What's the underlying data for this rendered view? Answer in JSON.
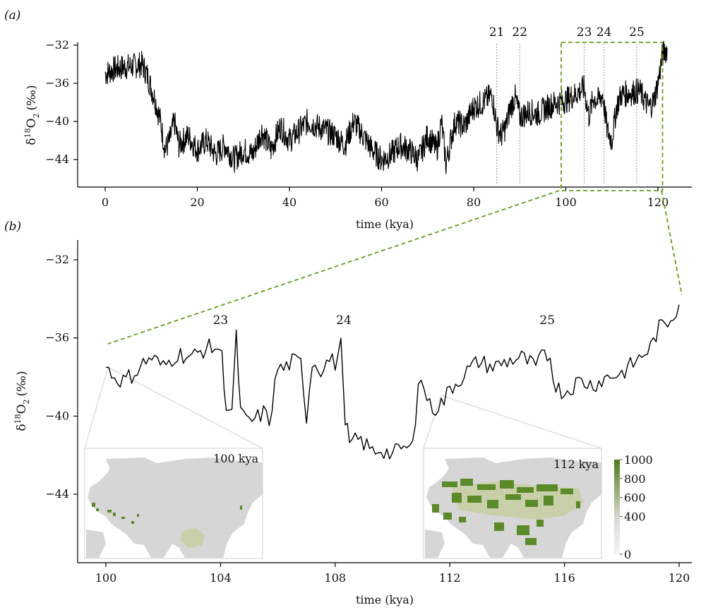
{
  "panel_a": {
    "label": "(a)",
    "xlabel": "time (kya)",
    "ylabel_main": "δ",
    "ylabel_sup": "18",
    "ylabel_o": "O",
    "ylabel_sub": "2",
    "ylabel_unit": "(‰)",
    "xticks": [
      "0",
      "20",
      "40",
      "60",
      "80",
      "100",
      "120"
    ],
    "yticks": [
      "−32",
      "−36",
      "−40",
      "−44"
    ],
    "event_labels": [
      "21",
      "22",
      "23",
      "24",
      "25"
    ]
  },
  "panel_b": {
    "label": "(b)",
    "xlabel": "time (kya)",
    "ylabel_main": "δ",
    "ylabel_sup": "18",
    "ylabel_o": "O",
    "ylabel_sub": "2",
    "ylabel_unit": "(‰)",
    "xticks": [
      "100",
      "104",
      "108",
      "112",
      "116",
      "120"
    ],
    "yticks": [
      "−32",
      "−36",
      "−40",
      "−44"
    ],
    "event_labels": [
      "23",
      "24",
      "25"
    ],
    "inset_labels": [
      "100 kya",
      "112 kya"
    ],
    "colorbar_ticks": [
      "1000",
      "800",
      "600",
      "400",
      "0"
    ]
  },
  "colors": {
    "line": "#000000",
    "highlight": "#6a9a1f",
    "map_land": "#d6d6d6",
    "map_green": "#5a8a2a",
    "map_pale": "#c9cfa8"
  },
  "chart_data": [
    {
      "type": "line",
      "xlabel": "time (kya)",
      "ylabel": "δ18O2 (‰)",
      "xlim": [
        0,
        125
      ],
      "ylim": [
        -47,
        -31
      ],
      "y_reversed": false,
      "grid": false,
      "series": [
        {
          "x": [
            0,
            2,
            4,
            6,
            8,
            9,
            10,
            11,
            12,
            13,
            14,
            15,
            16,
            18,
            20,
            22,
            24,
            26,
            28,
            30,
            32,
            34,
            36,
            38,
            40,
            42,
            44,
            46,
            48,
            50,
            52,
            54,
            56,
            58,
            60,
            62,
            64,
            66,
            68,
            70,
            72,
            73,
            74,
            75,
            76,
            78,
            80,
            82,
            84,
            85,
            86,
            87,
            88,
            89,
            90,
            92,
            94,
            96,
            98,
            100,
            102,
            103,
            104,
            105,
            106,
            107,
            108,
            109,
            110,
            111,
            112,
            114,
            116,
            118,
            119,
            120,
            121,
            122
          ],
          "y": [
            -35,
            -34.5,
            -34.3,
            -34.2,
            -34,
            -35,
            -36.5,
            -38,
            -40,
            -43,
            -42,
            -40,
            -42.5,
            -41.5,
            -43,
            -42,
            -43.5,
            -42.5,
            -44,
            -43,
            -43.5,
            -41,
            -43,
            -40.5,
            -42,
            -41,
            -40,
            -40.5,
            -41,
            -41.5,
            -42.5,
            -40,
            -41.5,
            -43,
            -44,
            -43.5,
            -42.5,
            -43,
            -44,
            -41.5,
            -43,
            -40,
            -44.5,
            -42,
            -40,
            -40.5,
            -38.5,
            -38,
            -37.2,
            -40.5,
            -41.5,
            -40.5,
            -38.5,
            -37.5,
            -39.5,
            -39,
            -39.2,
            -38.5,
            -38,
            -37.8,
            -37.2,
            -36.8,
            -36.5,
            -39.5,
            -37.5,
            -37.8,
            -37.2,
            -41,
            -42,
            -38.5,
            -37.2,
            -37,
            -36.8,
            -38.5,
            -38,
            -36,
            -33,
            -32.3
          ]
        }
      ],
      "highlight_box_x": [
        99,
        121
      ],
      "event_markers": [
        {
          "label": "21",
          "x": 85
        },
        {
          "label": "22",
          "x": 90
        },
        {
          "label": "23",
          "x": 104
        },
        {
          "label": "24",
          "x": 108.3
        },
        {
          "label": "25",
          "x": 115.4
        }
      ]
    },
    {
      "type": "line",
      "xlabel": "time (kya)",
      "ylabel": "δ18O2 (‰)",
      "xlim": [
        99.2,
        120.8
      ],
      "ylim": [
        -47,
        -31
      ],
      "grid": false,
      "series": [
        {
          "x": [
            100,
            100.3,
            100.6,
            101,
            101.3,
            101.6,
            102,
            102.5,
            103,
            103.5,
            103.9,
            104.05,
            104.2,
            104.4,
            104.55,
            104.7,
            104.9,
            105.2,
            105.5,
            105.7,
            106,
            106.2,
            106.5,
            106.8,
            107,
            107.2,
            107.5,
            107.8,
            108,
            108.2,
            108.35,
            108.5,
            108.8,
            109,
            109.3,
            109.6,
            110,
            110.3,
            110.6,
            110.8,
            110.9,
            111.1,
            111.3,
            111.5,
            111.8,
            112,
            112.3,
            112.6,
            113,
            113.5,
            114,
            114.5,
            115,
            115.3,
            115.5,
            115.7,
            116,
            116.5,
            117,
            117.5,
            118,
            118.5,
            119,
            119.3,
            119.6,
            120
          ],
          "y": [
            -37.5,
            -38,
            -38.2,
            -37.8,
            -37.3,
            -37,
            -37.5,
            -36.8,
            -37,
            -36.5,
            -36.5,
            -37,
            -39.5,
            -39.8,
            -36,
            -39.8,
            -40.3,
            -40.2,
            -39.8,
            -40.3,
            -37.5,
            -37.6,
            -37.2,
            -37.3,
            -40,
            -37.2,
            -37.6,
            -37.1,
            -37.3,
            -36.4,
            -40,
            -41.5,
            -41.2,
            -41.4,
            -41.8,
            -41.7,
            -42,
            -41.6,
            -41.8,
            -40,
            -38.2,
            -38.5,
            -39.5,
            -39.6,
            -39.2,
            -38.6,
            -38.2,
            -37.7,
            -37.2,
            -37.5,
            -37.2,
            -37,
            -37.5,
            -36.8,
            -37,
            -38.5,
            -38.8,
            -38.2,
            -38.4,
            -38,
            -37.8,
            -37.2,
            -36.5,
            -35.5,
            -35.2,
            -34.3
          ]
        }
      ],
      "event_markers": [
        {
          "label": "23",
          "x": 104
        },
        {
          "label": "24",
          "x": 108.3
        },
        {
          "label": "25",
          "x": 115.4
        }
      ],
      "insets": [
        {
          "label": "100 kya",
          "type": "heatmap"
        },
        {
          "label": "112 kya",
          "type": "heatmap",
          "colorbar": {
            "min": 0,
            "max": 1000,
            "ticks": [
              0,
              400,
              600,
              800,
              1000
            ]
          }
        }
      ]
    }
  ]
}
